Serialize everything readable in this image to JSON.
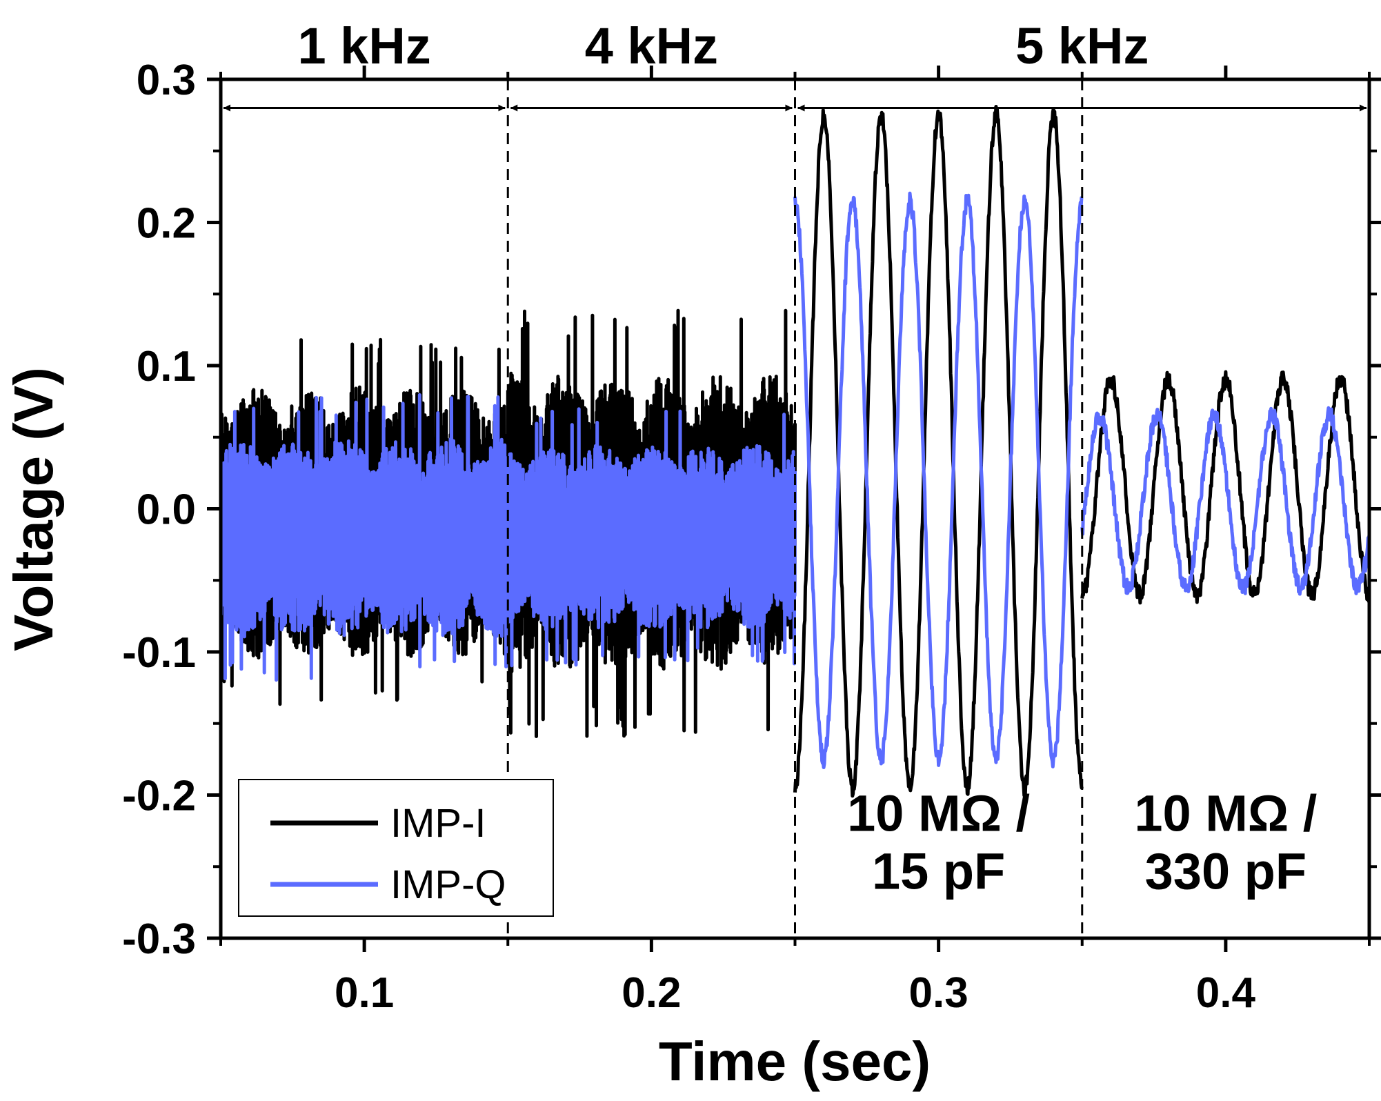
{
  "chart_data": {
    "type": "line",
    "title": "",
    "xlabel": "Time (sec)",
    "ylabel": "Voltage (V)",
    "xlim": [
      0.05,
      0.45
    ],
    "ylim": [
      -0.3,
      0.3
    ],
    "xticks": [
      {
        "value": 0.1,
        "label": "0.1"
      },
      {
        "value": 0.2,
        "label": "0.2"
      },
      {
        "value": 0.3,
        "label": "0.3"
      },
      {
        "value": 0.4,
        "label": "0.4"
      }
    ],
    "yticks": [
      {
        "value": 0.3,
        "label": "0.3"
      },
      {
        "value": 0.2,
        "label": "0.2"
      },
      {
        "value": 0.1,
        "label": "0.1"
      },
      {
        "value": 0.0,
        "label": "0.0"
      },
      {
        "value": -0.1,
        "label": "-0.1"
      },
      {
        "value": -0.2,
        "label": "-0.2"
      },
      {
        "value": -0.3,
        "label": "-0.3"
      }
    ],
    "dividers": [
      0.15,
      0.25,
      0.35
    ],
    "frequency_spans": [
      {
        "label": "1 kHz",
        "x_start": 0.05,
        "x_end": 0.15
      },
      {
        "label": "4 kHz",
        "x_start": 0.15,
        "x_end": 0.25
      },
      {
        "label": "5 kHz",
        "x_start": 0.25,
        "x_end": 0.45
      }
    ],
    "span_arrow_y": 0.28,
    "annotations": [
      {
        "lines": [
          "10 MΩ /",
          "15 pF"
        ],
        "x": 0.3,
        "y": -0.225
      },
      {
        "lines": [
          "10 MΩ /",
          "330 pF"
        ],
        "x": 0.4,
        "y": -0.225
      }
    ],
    "legend": {
      "position": "bottom-left"
    },
    "series": [
      {
        "name": "IMP-I",
        "color": "#000000",
        "segments": [
          {
            "x_start": 0.05,
            "x_end": 0.15,
            "kind": "noise",
            "center": -0.01,
            "amplitude": 0.095,
            "spike_extent": 0.13
          },
          {
            "x_start": 0.15,
            "x_end": 0.25,
            "kind": "noise",
            "center": -0.01,
            "amplitude": 0.105,
            "spike_extent": 0.15
          },
          {
            "x_start": 0.25,
            "x_end": 0.35,
            "kind": "sine",
            "center": 0.04,
            "amplitude": 0.235,
            "frequency_hz": 50,
            "phase_deg": -90
          },
          {
            "x_start": 0.35,
            "x_end": 0.45,
            "kind": "sine",
            "center": 0.015,
            "amplitude": 0.075,
            "frequency_hz": 50,
            "phase_deg": -90
          }
        ]
      },
      {
        "name": "IMP-Q",
        "color": "#5b6cff",
        "segments": [
          {
            "x_start": 0.05,
            "x_end": 0.15,
            "kind": "noise",
            "center": -0.02,
            "amplitude": 0.07,
            "spike_extent": 0.1
          },
          {
            "x_start": 0.15,
            "x_end": 0.25,
            "kind": "noise",
            "center": -0.02,
            "amplitude": 0.065,
            "spike_extent": 0.09
          },
          {
            "x_start": 0.25,
            "x_end": 0.35,
            "kind": "sine",
            "center": 0.02,
            "amplitude": 0.195,
            "frequency_hz": 50,
            "phase_deg": 90
          },
          {
            "x_start": 0.35,
            "x_end": 0.45,
            "kind": "sine",
            "center": 0.005,
            "amplitude": 0.06,
            "frequency_hz": 50,
            "phase_deg": -20
          }
        ]
      }
    ]
  }
}
